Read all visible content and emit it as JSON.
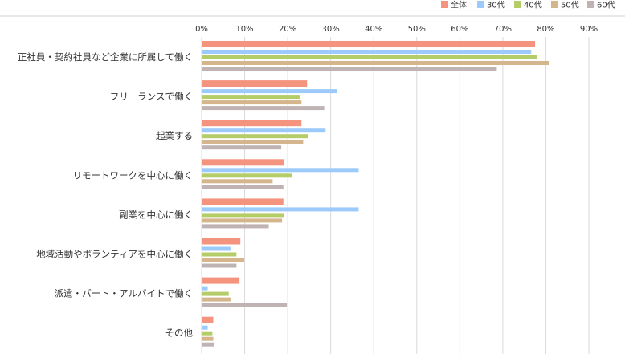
{
  "chart_data": {
    "type": "bar",
    "orientation": "horizontal",
    "title": "",
    "xlabel": "",
    "ylabel": "",
    "xlim": [
      0,
      90
    ],
    "x_ticks": [
      "0%",
      "10%",
      "20%",
      "30%",
      "40%",
      "50%",
      "60%",
      "70%",
      "80%",
      "90%"
    ],
    "grid": true,
    "legend_position": "top-right",
    "categories": [
      "正社員・契約社員など企業に所属して働く",
      "フリーランスで働く",
      "起業する",
      "リモートワークを中心に働く",
      "副業を中心に働く",
      "地域活動やボランティアを中心に働く",
      "派遣・パート・アルバイトで働く",
      "その他"
    ],
    "series": [
      {
        "name": "全体",
        "color": "#f4947f",
        "values": [
          77.5,
          24.5,
          23.2,
          19.2,
          19.0,
          9.0,
          8.8,
          2.7
        ]
      },
      {
        "name": "30代",
        "color": "#9ccafa",
        "values": [
          76.6,
          31.4,
          28.8,
          36.5,
          36.5,
          6.7,
          1.4,
          1.4
        ]
      },
      {
        "name": "40代",
        "color": "#b5cd68",
        "values": [
          78.0,
          22.8,
          24.8,
          21.0,
          19.2,
          8.1,
          6.3,
          2.5
        ]
      },
      {
        "name": "50代",
        "color": "#d4b58c",
        "values": [
          80.8,
          23.2,
          23.6,
          16.5,
          18.7,
          9.9,
          6.7,
          2.7
        ]
      },
      {
        "name": "60代",
        "color": "#c0b3b3",
        "values": [
          68.6,
          28.5,
          18.5,
          19.0,
          15.6,
          8.1,
          19.8,
          3.0
        ]
      }
    ]
  }
}
